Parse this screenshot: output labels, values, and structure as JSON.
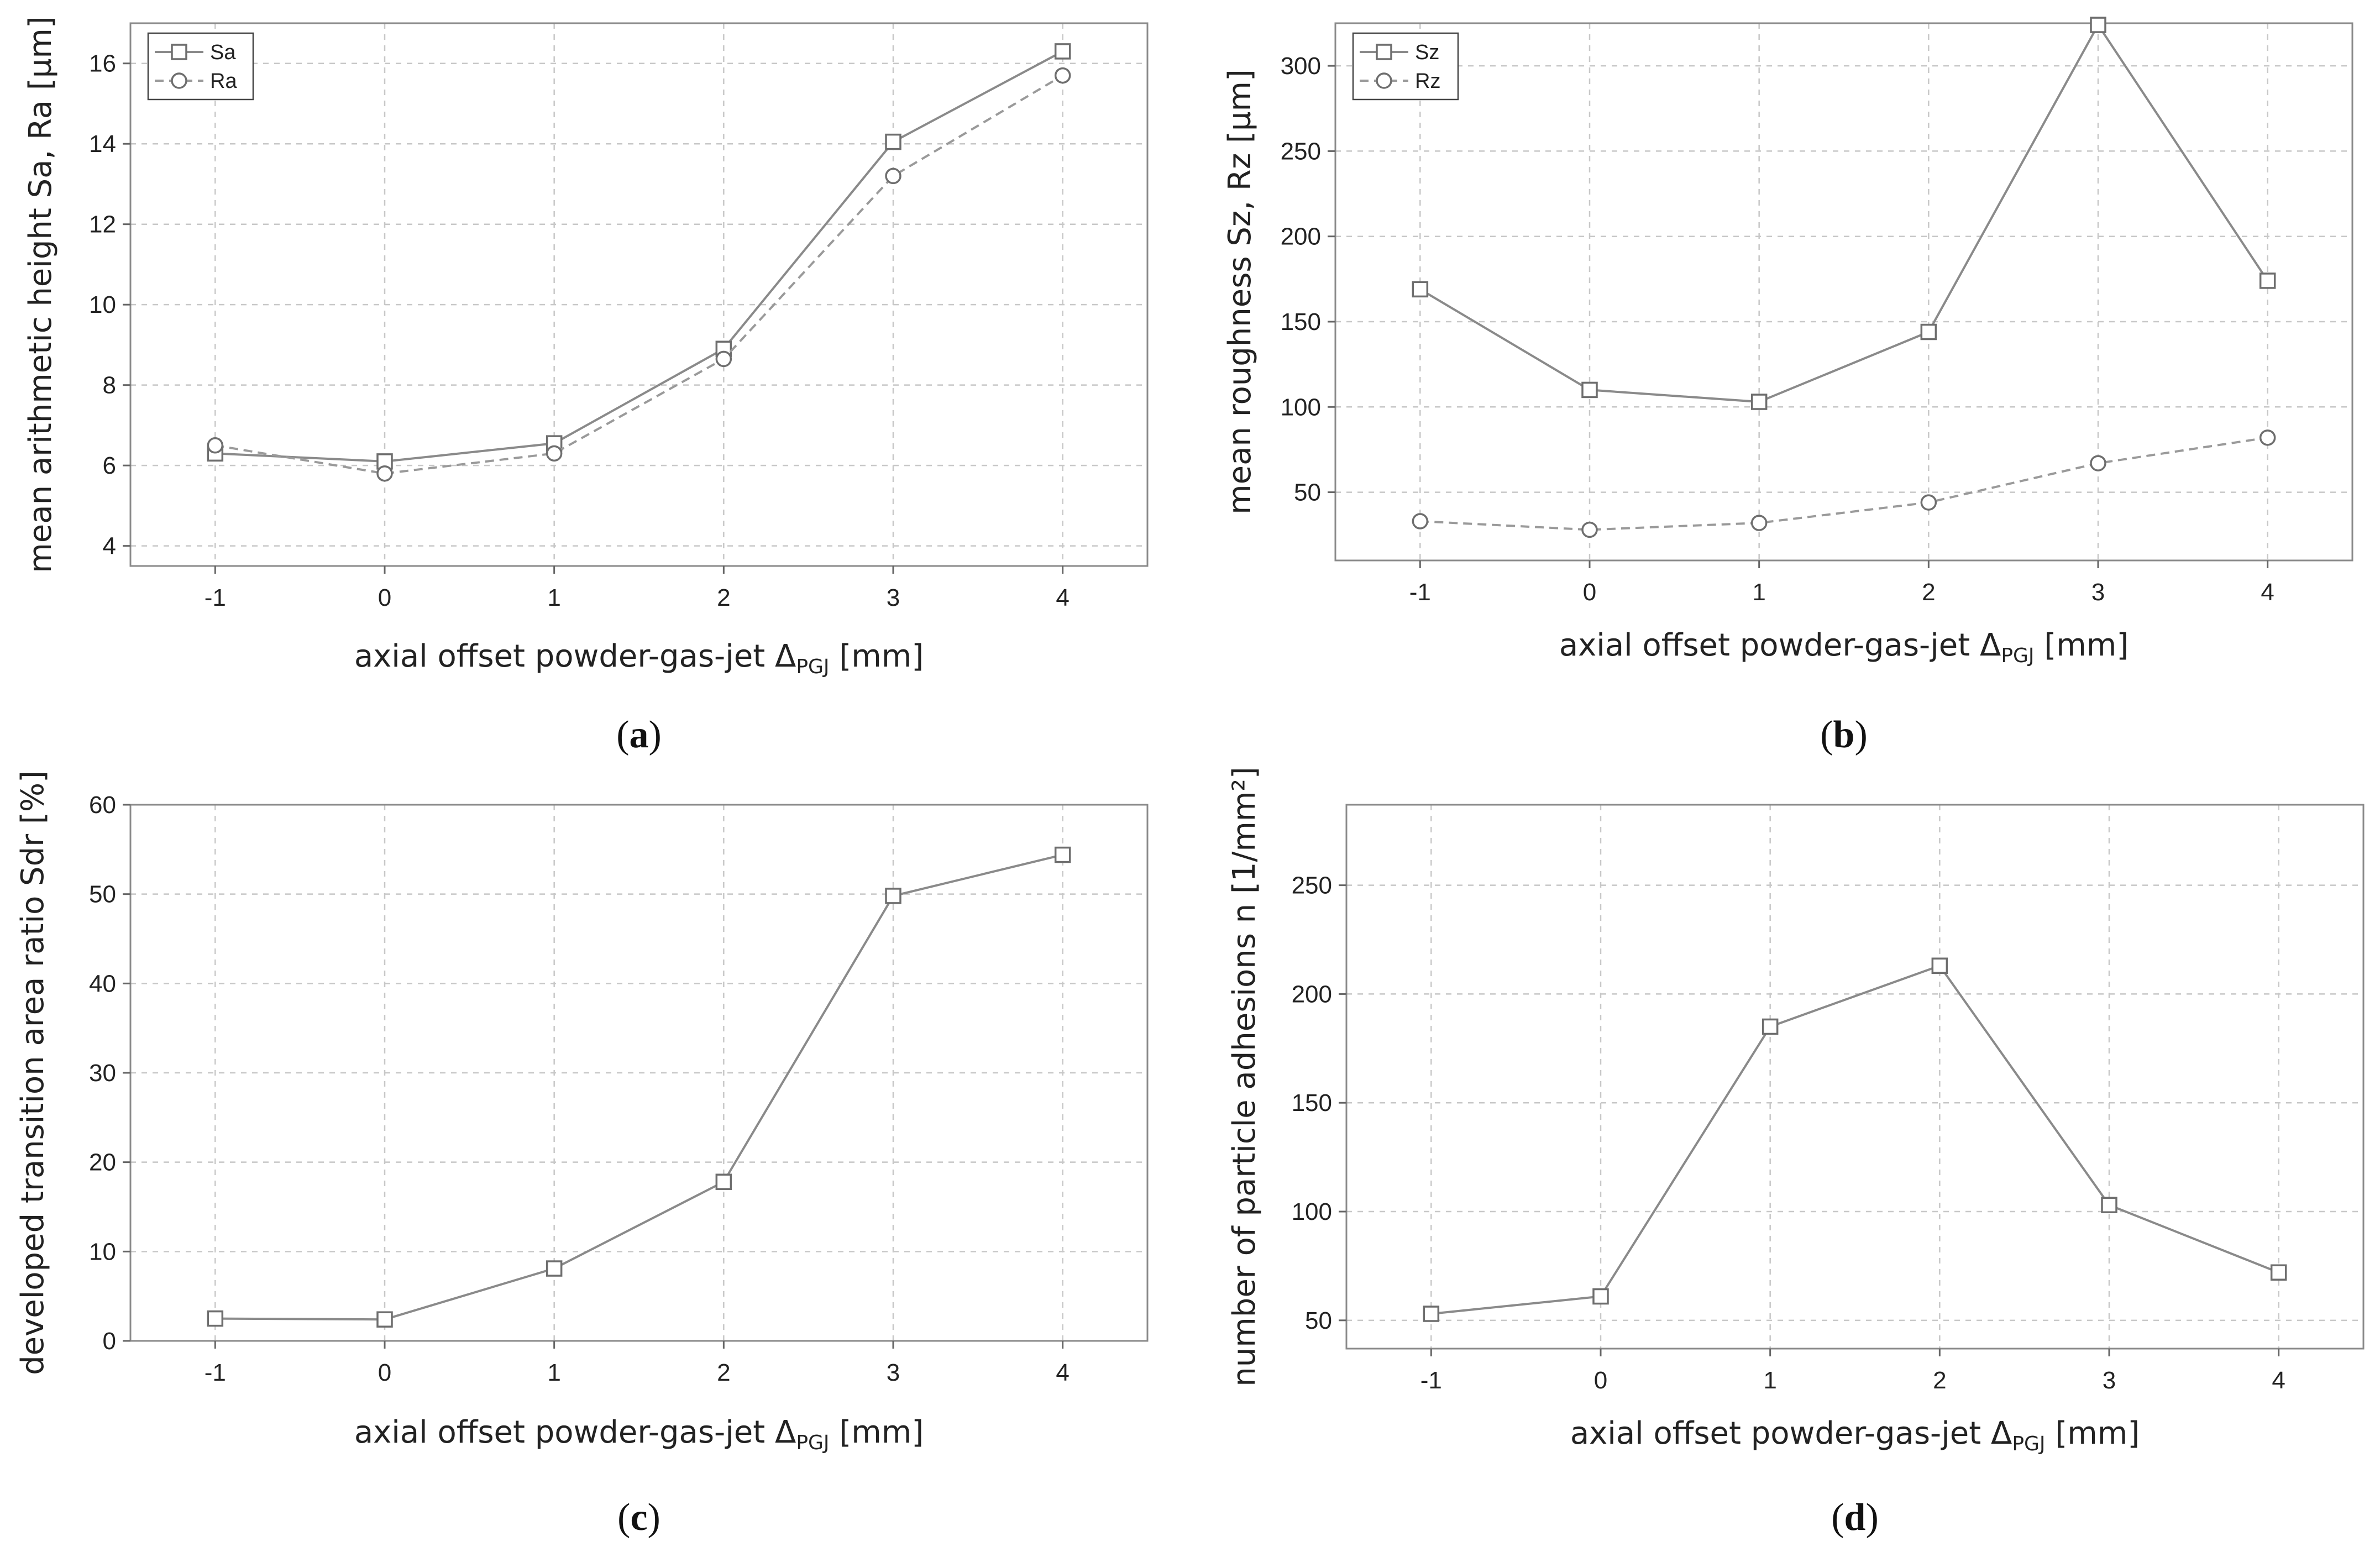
{
  "chart_data": [
    {
      "id": "a",
      "type": "line",
      "caption": "a",
      "x": [
        -1,
        0,
        1,
        2,
        3,
        4
      ],
      "xticks": [
        "-1",
        "0",
        "1",
        "2",
        "3",
        "4"
      ],
      "xlim": [
        -1.5,
        4.5
      ],
      "ylim": [
        3.5,
        17.0
      ],
      "yticks": [
        4,
        6,
        8,
        10,
        12,
        14,
        16
      ],
      "xlabel": "axial offset powder-gas-jet Δ",
      "xlabel_sub": "PGJ",
      "xlabel_unit": " [mm]",
      "ylabel": "mean arithmetic height Sa, Ra [µm]",
      "legend": "top-left",
      "series": [
        {
          "name": "Sa",
          "marker": "square",
          "line": "solid",
          "values": [
            6.3,
            6.1,
            6.55,
            8.9,
            14.05,
            16.3
          ]
        },
        {
          "name": "Ra",
          "marker": "circle",
          "line": "dashed",
          "values": [
            6.5,
            5.8,
            6.3,
            8.65,
            13.2,
            15.7
          ]
        }
      ]
    },
    {
      "id": "b",
      "type": "line",
      "caption": "b",
      "x": [
        -1,
        0,
        1,
        2,
        3,
        4
      ],
      "xticks": [
        "-1",
        "0",
        "1",
        "2",
        "3",
        "4"
      ],
      "xlim": [
        -1.5,
        4.5
      ],
      "ylim": [
        10,
        325
      ],
      "yticks": [
        50,
        100,
        150,
        200,
        250,
        300
      ],
      "xlabel": "axial offset powder-gas-jet Δ",
      "xlabel_sub": "PGJ",
      "xlabel_unit": " [mm]",
      "ylabel": "mean roughness Sz, Rz [µm]",
      "legend": "top-left",
      "series": [
        {
          "name": "Sz",
          "marker": "square",
          "line": "solid",
          "values": [
            169,
            110,
            103,
            144,
            324,
            174
          ]
        },
        {
          "name": "Rz",
          "marker": "circle",
          "line": "dashed",
          "values": [
            33,
            28,
            32,
            44,
            67,
            82
          ]
        }
      ]
    },
    {
      "id": "c",
      "type": "line",
      "caption": "c",
      "x": [
        -1,
        0,
        1,
        2,
        3,
        4
      ],
      "xticks": [
        "-1",
        "0",
        "1",
        "2",
        "3",
        "4"
      ],
      "xlim": [
        -1.5,
        4.5
      ],
      "ylim": [
        0,
        60
      ],
      "yticks": [
        0,
        10,
        20,
        30,
        40,
        50,
        60
      ],
      "xlabel": "axial offset powder-gas-jet Δ",
      "xlabel_sub": "PGJ",
      "xlabel_unit": " [mm]",
      "ylabel": "developed transition area ratio Sdr [%]",
      "series": [
        {
          "name": "Sdr",
          "marker": "square",
          "line": "solid",
          "values": [
            2.5,
            2.4,
            8.1,
            17.8,
            49.8,
            54.4
          ]
        }
      ]
    },
    {
      "id": "d",
      "type": "line",
      "caption": "d",
      "x": [
        -1,
        0,
        1,
        2,
        3,
        4
      ],
      "xticks": [
        "-1",
        "0",
        "1",
        "2",
        "3",
        "4"
      ],
      "xlim": [
        -1.5,
        4.5
      ],
      "ylim": [
        37,
        287
      ],
      "yticks": [
        50,
        100,
        150,
        200,
        250
      ],
      "xlabel": "axial offset powder-gas-jet Δ",
      "xlabel_sub": "PGJ",
      "xlabel_unit": " [mm]",
      "ylabel": "number of particle adhesions n [1/mm²]",
      "series": [
        {
          "name": "n",
          "marker": "square",
          "line": "solid",
          "values": [
            53,
            61,
            185,
            213,
            103,
            72
          ]
        }
      ]
    }
  ]
}
